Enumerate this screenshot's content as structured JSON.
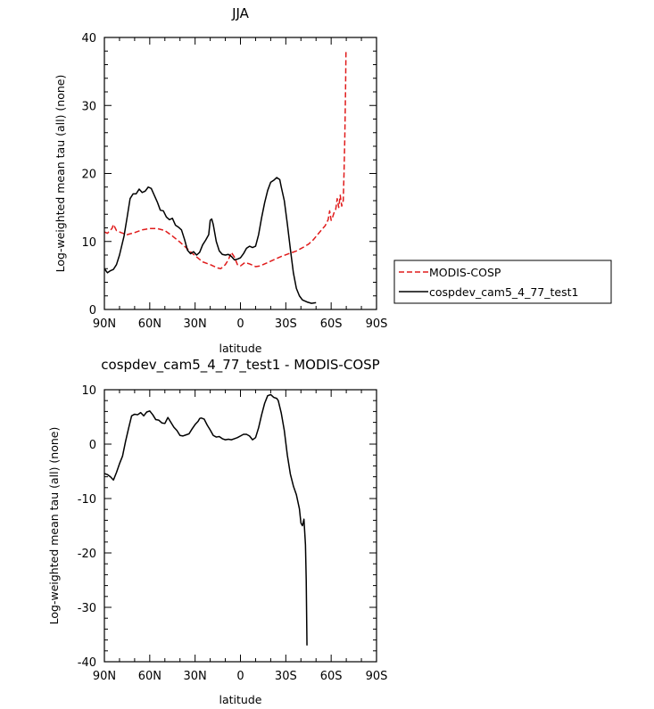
{
  "chart_data": [
    {
      "type": "line",
      "title": "JJA",
      "xlabel": "latitude",
      "ylabel": "Log-weighted mean tau (all) (none)",
      "xlim": [
        90,
        -90
      ],
      "ylim": [
        0,
        40
      ],
      "x_ticks": [
        90,
        60,
        30,
        0,
        -30,
        -60,
        -90
      ],
      "x_tick_labels": [
        "90N",
        "60N",
        "30N",
        "0",
        "30S",
        "60S",
        "90S"
      ],
      "y_ticks": [
        0,
        10,
        20,
        30,
        40
      ],
      "y_tick_labels": [
        "0",
        "10",
        "20",
        "30",
        "40"
      ],
      "legend_position": "right",
      "series": [
        {
          "name": "MODIS-COSP",
          "color": "#e01b1b",
          "dash": "dashed",
          "points": [
            [
              90,
              11.4
            ],
            [
              88,
              11.2
            ],
            [
              85,
              11.9
            ],
            [
              84,
              12.5
            ],
            [
              82,
              11.6
            ],
            [
              79,
              11.3
            ],
            [
              75,
              11.0
            ],
            [
              70,
              11.3
            ],
            [
              65,
              11.7
            ],
            [
              60,
              11.9
            ],
            [
              55,
              11.9
            ],
            [
              50,
              11.6
            ],
            [
              45,
              10.8
            ],
            [
              40,
              9.9
            ],
            [
              35,
              8.9
            ],
            [
              30,
              7.9
            ],
            [
              25,
              7.0
            ],
            [
              20,
              6.6
            ],
            [
              15,
              6.1
            ],
            [
              13,
              6.0
            ],
            [
              10,
              6.6
            ],
            [
              8,
              7.3
            ],
            [
              6,
              8.4
            ],
            [
              4,
              7.7
            ],
            [
              2,
              6.6
            ],
            [
              0,
              6.4
            ],
            [
              -3,
              6.9
            ],
            [
              -6,
              6.7
            ],
            [
              -10,
              6.3
            ],
            [
              -13,
              6.4
            ],
            [
              -17,
              6.8
            ],
            [
              -22,
              7.3
            ],
            [
              -27,
              7.8
            ],
            [
              -32,
              8.2
            ],
            [
              -37,
              8.6
            ],
            [
              -42,
              9.2
            ],
            [
              -45,
              9.6
            ],
            [
              -48,
              10.2
            ],
            [
              -51,
              11.0
            ],
            [
              -54,
              11.8
            ],
            [
              -56,
              12.3
            ],
            [
              -58,
              13.2
            ],
            [
              -59,
              14.5
            ],
            [
              -60,
              13.1
            ],
            [
              -61,
              13.6
            ],
            [
              -62,
              14.3
            ],
            [
              -63,
              14.7
            ],
            [
              -64,
              16.3
            ],
            [
              -65,
              15.0
            ],
            [
              -66,
              16.8
            ],
            [
              -67,
              15.2
            ],
            [
              -68,
              16.0
            ],
            [
              -68.5,
              20.0
            ],
            [
              -69,
              25.0
            ],
            [
              -69.5,
              32.0
            ],
            [
              -69.8,
              38.0
            ]
          ]
        },
        {
          "name": "cospdev_cam5_4_77_test1",
          "color": "#000000",
          "dash": "solid",
          "points": [
            [
              90,
              6.0
            ],
            [
              88,
              5.4
            ],
            [
              86,
              5.7
            ],
            [
              84,
              5.9
            ],
            [
              82,
              6.6
            ],
            [
              80,
              8.0
            ],
            [
              77,
              10.8
            ],
            [
              75,
              13.5
            ],
            [
              73,
              16.3
            ],
            [
              71,
              17.0
            ],
            [
              69,
              17.0
            ],
            [
              67,
              17.7
            ],
            [
              65,
              17.2
            ],
            [
              63,
              17.4
            ],
            [
              61,
              18.0
            ],
            [
              59,
              17.8
            ],
            [
              57,
              16.8
            ],
            [
              55,
              15.8
            ],
            [
              53,
              14.6
            ],
            [
              51,
              14.5
            ],
            [
              49,
              13.6
            ],
            [
              47,
              13.2
            ],
            [
              45,
              13.4
            ],
            [
              43,
              12.4
            ],
            [
              41,
              12.1
            ],
            [
              39,
              11.7
            ],
            [
              37,
              10.3
            ],
            [
              35,
              8.7
            ],
            [
              33,
              8.2
            ],
            [
              31,
              8.5
            ],
            [
              29,
              8.0
            ],
            [
              27,
              8.4
            ],
            [
              25,
              9.5
            ],
            [
              23,
              10.2
            ],
            [
              21,
              11.0
            ],
            [
              20,
              13.1
            ],
            [
              19,
              13.3
            ],
            [
              18,
              12.5
            ],
            [
              16,
              10.0
            ],
            [
              14,
              8.6
            ],
            [
              12,
              8.1
            ],
            [
              10,
              8.0
            ],
            [
              8,
              8.1
            ],
            [
              6,
              7.8
            ],
            [
              4,
              7.3
            ],
            [
              2,
              7.4
            ],
            [
              0,
              7.6
            ],
            [
              -2,
              8.2
            ],
            [
              -4,
              9.0
            ],
            [
              -6,
              9.3
            ],
            [
              -8,
              9.1
            ],
            [
              -10,
              9.3
            ],
            [
              -12,
              11.0
            ],
            [
              -14,
              13.5
            ],
            [
              -16,
              15.7
            ],
            [
              -18,
              17.5
            ],
            [
              -20,
              18.7
            ],
            [
              -22,
              19.0
            ],
            [
              -24,
              19.4
            ],
            [
              -26,
              19.1
            ],
            [
              -27,
              18.0
            ],
            [
              -29,
              16.0
            ],
            [
              -31,
              12.6
            ],
            [
              -33,
              8.9
            ],
            [
              -35,
              5.4
            ],
            [
              -37,
              3.1
            ],
            [
              -39,
              2.0
            ],
            [
              -41,
              1.4
            ],
            [
              -44,
              1.1
            ],
            [
              -47,
              0.9
            ],
            [
              -50,
              1.0
            ]
          ]
        }
      ]
    },
    {
      "type": "line",
      "title": "cospdev_cam5_4_77_test1 - MODIS-COSP",
      "xlabel": "latitude",
      "ylabel": "Log-weighted mean tau (all) (none)",
      "xlim": [
        90,
        -90
      ],
      "ylim": [
        -40,
        10
      ],
      "x_ticks": [
        90,
        60,
        30,
        0,
        -30,
        -60,
        -90
      ],
      "x_tick_labels": [
        "90N",
        "60N",
        "30N",
        "0",
        "30S",
        "60S",
        "90S"
      ],
      "y_ticks": [
        -40,
        -30,
        -20,
        -10,
        0,
        10
      ],
      "y_tick_labels": [
        "-40",
        "-30",
        "-20",
        "-10",
        "0",
        "10"
      ],
      "series": [
        {
          "color": "#000000",
          "dash": "solid",
          "points": [
            [
              90,
              -5.4
            ],
            [
              88,
              -5.6
            ],
            [
              86,
              -6.0
            ],
            [
              84,
              -6.6
            ],
            [
              82,
              -5.2
            ],
            [
              80,
              -3.6
            ],
            [
              78,
              -2.2
            ],
            [
              76,
              0.5
            ],
            [
              74,
              2.9
            ],
            [
              72,
              5.2
            ],
            [
              70,
              5.5
            ],
            [
              68,
              5.4
            ],
            [
              66,
              5.8
            ],
            [
              64,
              5.2
            ],
            [
              62,
              5.9
            ],
            [
              60,
              6.1
            ],
            [
              58,
              5.4
            ],
            [
              56,
              4.5
            ],
            [
              54,
              4.4
            ],
            [
              52,
              3.9
            ],
            [
              50,
              3.8
            ],
            [
              48,
              4.9
            ],
            [
              46,
              4.0
            ],
            [
              44,
              3.1
            ],
            [
              42,
              2.5
            ],
            [
              40,
              1.6
            ],
            [
              38,
              1.5
            ],
            [
              36,
              1.7
            ],
            [
              34,
              1.9
            ],
            [
              32,
              2.8
            ],
            [
              30,
              3.6
            ],
            [
              28,
              4.2
            ],
            [
              27,
              4.7
            ],
            [
              26,
              4.8
            ],
            [
              24,
              4.6
            ],
            [
              22,
              3.5
            ],
            [
              20,
              2.6
            ],
            [
              18,
              1.6
            ],
            [
              16,
              1.3
            ],
            [
              14,
              1.4
            ],
            [
              12,
              1.0
            ],
            [
              10,
              0.8
            ],
            [
              8,
              0.9
            ],
            [
              6,
              0.8
            ],
            [
              4,
              1.0
            ],
            [
              2,
              1.2
            ],
            [
              0,
              1.5
            ],
            [
              -2,
              1.8
            ],
            [
              -4,
              1.8
            ],
            [
              -6,
              1.5
            ],
            [
              -8,
              0.8
            ],
            [
              -10,
              1.2
            ],
            [
              -12,
              3.0
            ],
            [
              -14,
              5.4
            ],
            [
              -16,
              7.5
            ],
            [
              -18,
              8.9
            ],
            [
              -20,
              9.1
            ],
            [
              -22,
              8.6
            ],
            [
              -24,
              8.4
            ],
            [
              -25,
              8.0
            ],
            [
              -27,
              5.7
            ],
            [
              -29,
              2.5
            ],
            [
              -31,
              -2.0
            ],
            [
              -33,
              -5.5
            ],
            [
              -35,
              -7.7
            ],
            [
              -37,
              -9.3
            ],
            [
              -39,
              -11.9
            ],
            [
              -40,
              -14.5
            ],
            [
              -41,
              -15.0
            ],
            [
              -42,
              -13.8
            ],
            [
              -43,
              -18.5
            ],
            [
              -43.5,
              -25.0
            ],
            [
              -44,
              -37.0
            ]
          ]
        }
      ]
    }
  ]
}
